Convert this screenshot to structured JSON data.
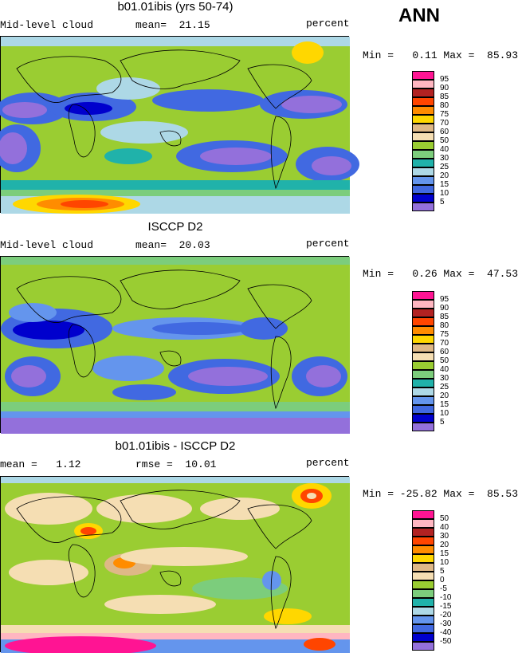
{
  "season": "ANN",
  "panels": [
    {
      "title": "b01.01ibis (yrs 50-74)",
      "left_text": "Mid-level cloud",
      "mid_text": "mean=  21.15",
      "right_text": "percent",
      "minmax_text": "Min =   0.11 Max =  85.93"
    },
    {
      "title": "ISCCP D2",
      "left_text": "Mid-level cloud",
      "mid_text": "mean=  20.03",
      "right_text": "percent",
      "minmax_text": "Min =   0.26 Max =  47.53"
    },
    {
      "title": "b01.01ibis - ISCCP D2",
      "left_text": "mean =   1.12",
      "mid_text": "rmse =  10.01",
      "right_text": "percent",
      "minmax_text": "Min = -25.82 Max =  85.53"
    }
  ],
  "legend_abs": {
    "labels": [
      "95",
      "90",
      "85",
      "80",
      "75",
      "70",
      "60",
      "50",
      "40",
      "30",
      "25",
      "20",
      "15",
      "10",
      "5"
    ],
    "colors": [
      "#ff1493",
      "#ffb6c1",
      "#b22222",
      "#ff4500",
      "#ff8c00",
      "#ffd700",
      "#deb887",
      "#f5deb3",
      "#9acd32",
      "#7ccd7c",
      "#20b2aa",
      "#add8e6",
      "#6495ed",
      "#4169e1",
      "#0000cd",
      "#9370db"
    ]
  },
  "legend_diff": {
    "labels": [
      "50",
      "40",
      "30",
      "20",
      "15",
      "10",
      "5",
      "0",
      "-5",
      "-10",
      "-15",
      "-20",
      "-30",
      "-40",
      "-50"
    ],
    "colors": [
      "#ff1493",
      "#ffb6c1",
      "#b22222",
      "#ff4500",
      "#ff8c00",
      "#ffd700",
      "#deb887",
      "#f5deb3",
      "#9acd32",
      "#7ccd7c",
      "#20b2aa",
      "#add8e6",
      "#6495ed",
      "#4169e1",
      "#0000cd",
      "#9370db"
    ]
  }
}
